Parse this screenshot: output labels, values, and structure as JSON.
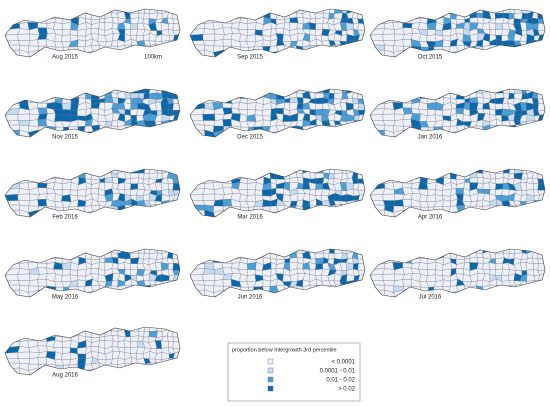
{
  "panels": [
    {
      "label": "Aug 2015"
    },
    {
      "label": "Sep 2015"
    },
    {
      "label": "Oct 2015"
    },
    {
      "label": "Nov 2015"
    },
    {
      "label": "Dec 2015"
    },
    {
      "label": "Jan 2016"
    },
    {
      "label": "Feb 2016"
    },
    {
      "label": "Mar 2016"
    },
    {
      "label": "Apr 2016"
    },
    {
      "label": "May 2016"
    },
    {
      "label": "Jun 2016"
    },
    {
      "label": "Jul 2016"
    },
    {
      "label": "Aug 2016"
    }
  ],
  "scale_label": "100km",
  "legend": {
    "title": "proportion below Intergrowth 3rd percentile",
    "items": [
      "< 0.0001",
      "0.0001 - 0.01",
      "0.01 - 0.02",
      "> 0.02"
    ]
  }
}
